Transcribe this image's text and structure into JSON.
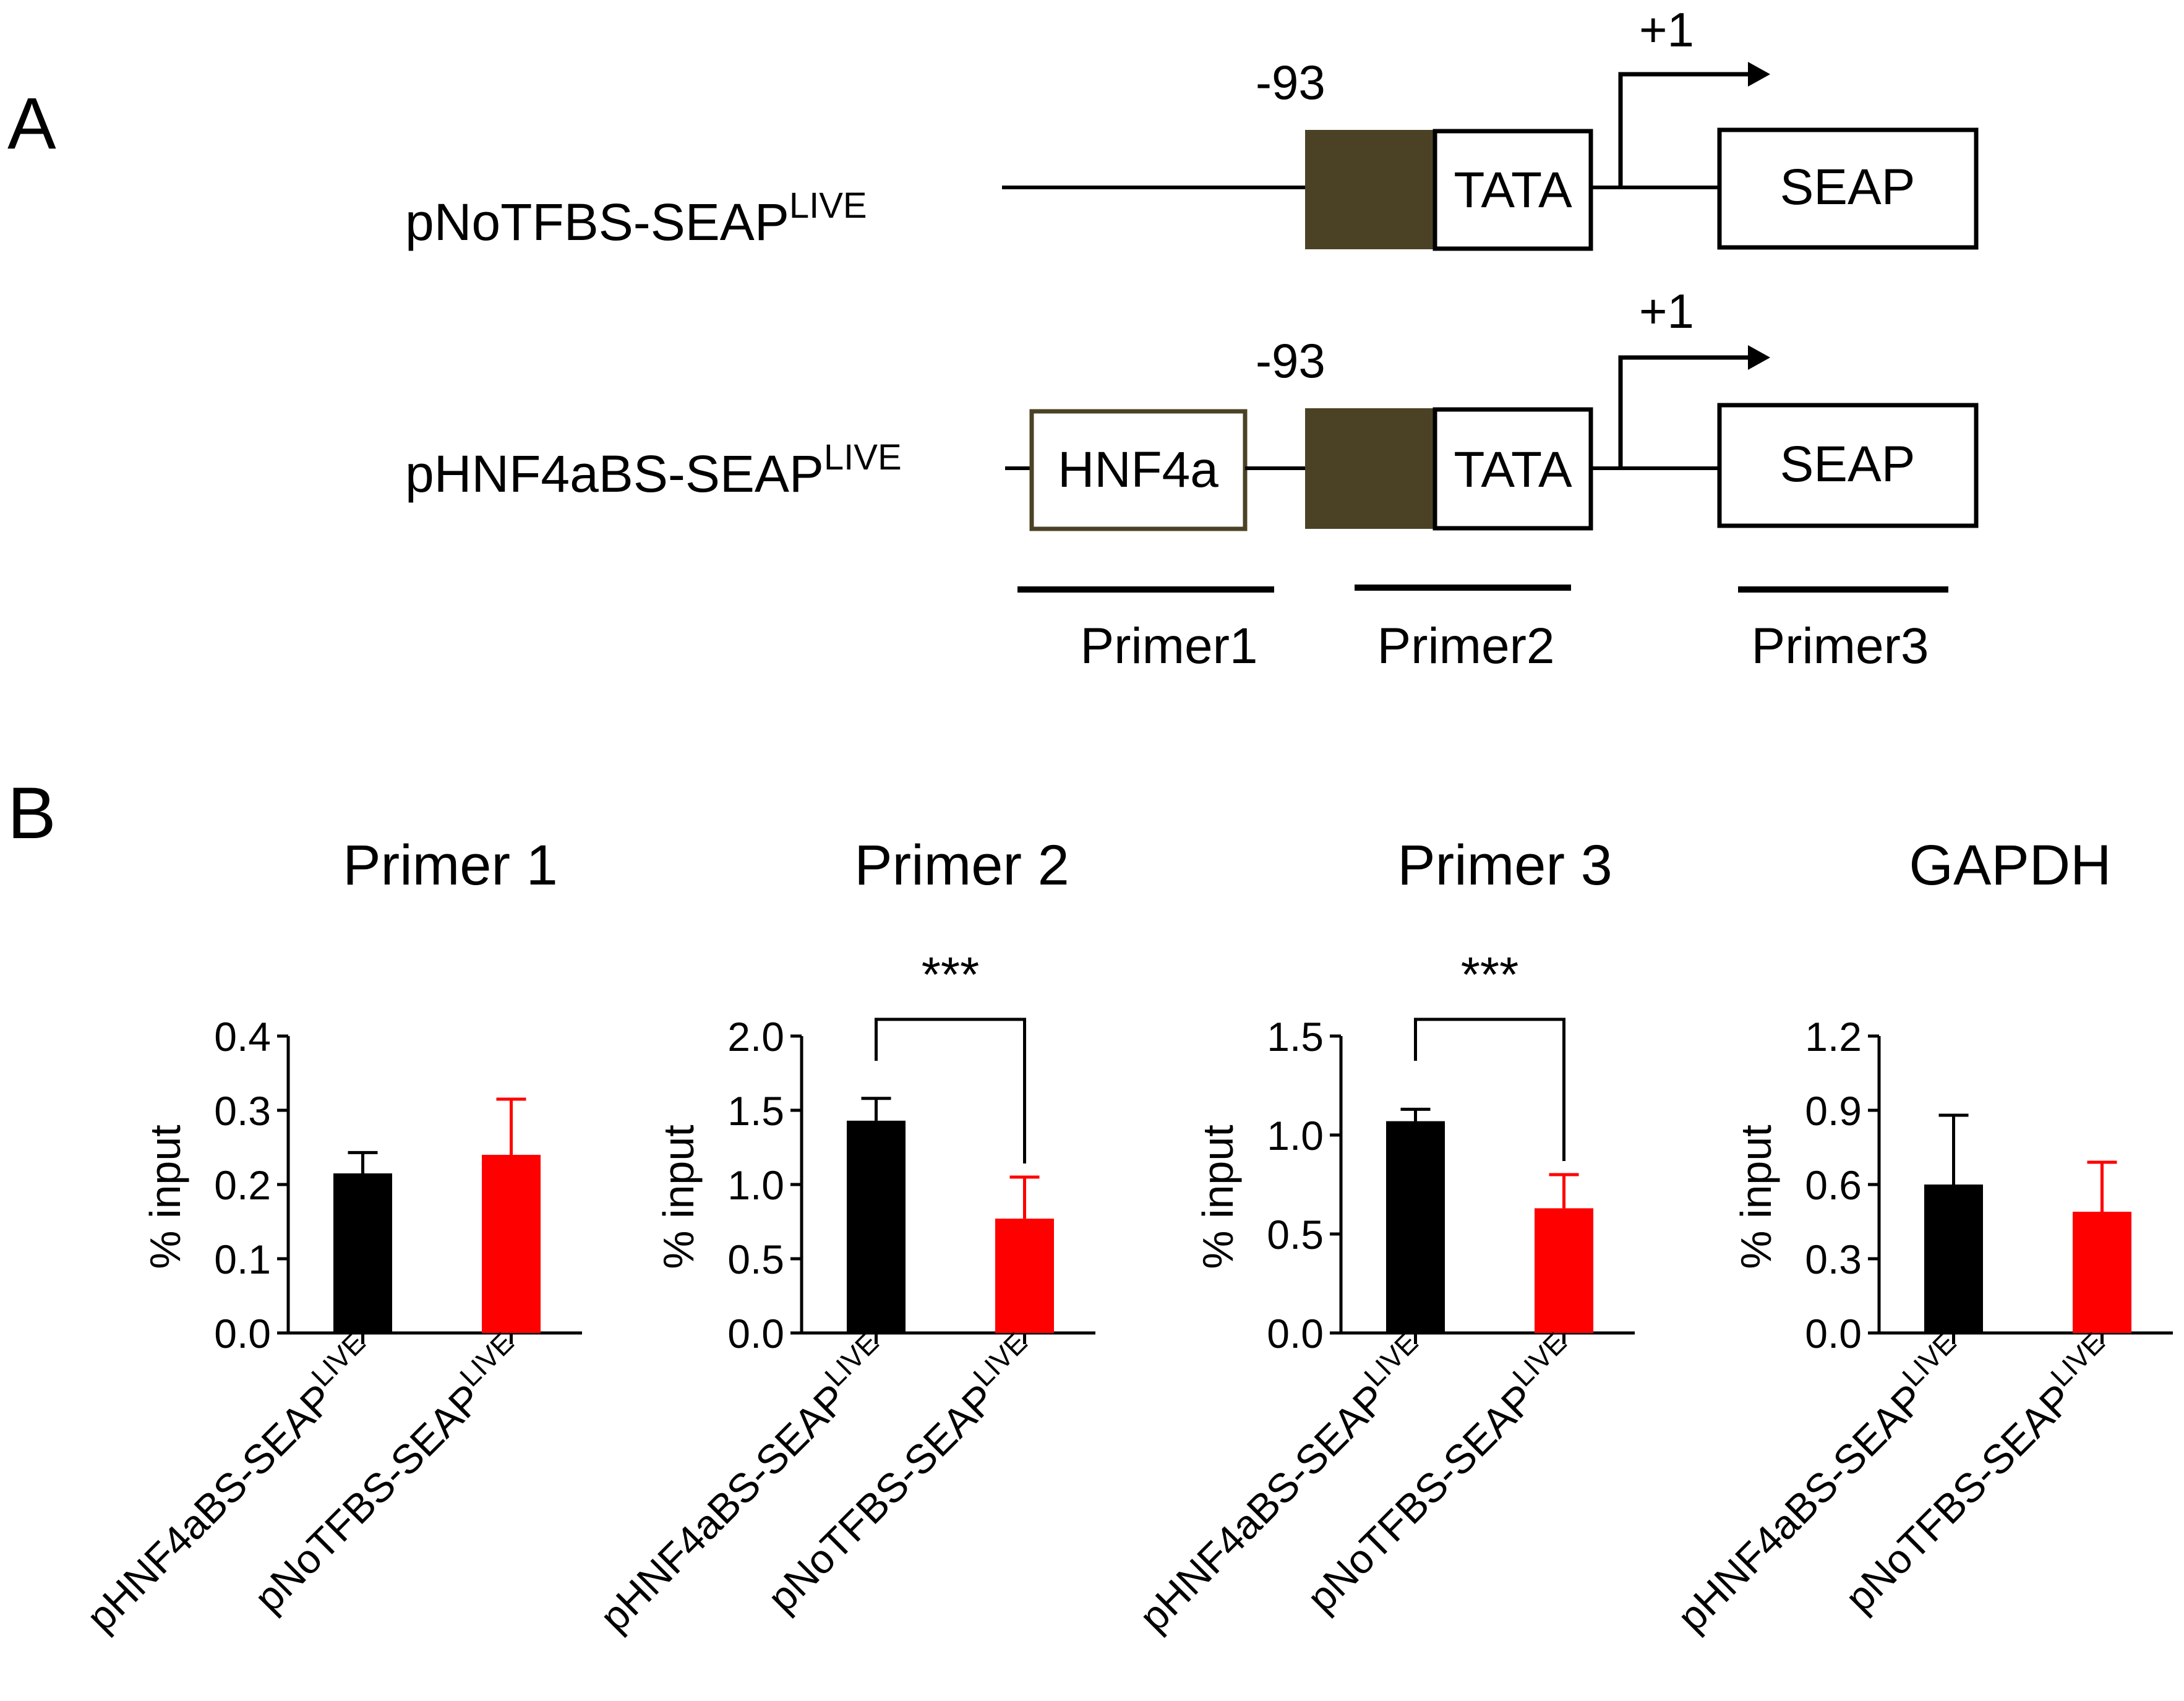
{
  "colors": {
    "ink": "#000000",
    "promoter_box": "#4b4226",
    "hnf4a_border": "#4b4226",
    "series_hnf4a": "#000000",
    "series_notfbs": "#ff0000"
  },
  "panel_a": {
    "label": "A",
    "constructs": [
      {
        "name": "pNoTFBS-SEAP",
        "superscript": "LIVE",
        "position_label": "-93",
        "tss_label": "+1",
        "tata_label": "TATA",
        "reporter_label": "SEAP"
      },
      {
        "name": "pHNF4aBS-SEAP",
        "superscript": "LIVE",
        "position_label": "-93",
        "tss_label": "+1",
        "tata_label": "TATA",
        "reporter_label": "SEAP",
        "binding_site_label": "HNF4a"
      }
    ],
    "primers": [
      "Primer1",
      "Primer2",
      "Primer3"
    ]
  },
  "panel_b": {
    "label": "B",
    "ylabel": "% input",
    "category_names": [
      "pHNF4aBS-SEAP",
      "pNoTFBS-SEAP"
    ],
    "category_superscript": "LIVE"
  },
  "chart_data": [
    {
      "type": "bar",
      "title": "Primer 1",
      "categories": [
        "pHNF4aBS-SEAPLIVE",
        "pNoTFBS-SEAPLIVE"
      ],
      "values": [
        0.215,
        0.24
      ],
      "errors": [
        0.028,
        0.075
      ],
      "ylabel": "% input",
      "ylim": [
        0,
        0.4
      ],
      "yticks": [
        0.0,
        0.1,
        0.2,
        0.3,
        0.4
      ],
      "ytick_labels": [
        "0.0",
        "0.1",
        "0.2",
        "0.3",
        "0.4"
      ],
      "significance": ""
    },
    {
      "type": "bar",
      "title": "Primer 2",
      "categories": [
        "pHNF4aBS-SEAPLIVE",
        "pNoTFBS-SEAPLIVE"
      ],
      "values": [
        1.43,
        0.77
      ],
      "errors": [
        0.15,
        0.28
      ],
      "ylabel": "% input",
      "ylim": [
        0,
        2.0
      ],
      "yticks": [
        0.0,
        0.5,
        1.0,
        1.5,
        2.0
      ],
      "ytick_labels": [
        "0.0",
        "0.5",
        "1.0",
        "1.5",
        "2.0"
      ],
      "significance": "***"
    },
    {
      "type": "bar",
      "title": "Primer 3",
      "categories": [
        "pHNF4aBS-SEAPLIVE",
        "pNoTFBS-SEAPLIVE"
      ],
      "values": [
        1.07,
        0.63
      ],
      "errors": [
        0.06,
        0.17
      ],
      "ylabel": "% input",
      "ylim": [
        0,
        1.5
      ],
      "yticks": [
        0.0,
        0.5,
        1.0,
        1.5
      ],
      "ytick_labels": [
        "0.0",
        "0.5",
        "1.0",
        "1.5"
      ],
      "significance": "***"
    },
    {
      "type": "bar",
      "title": "GAPDH",
      "categories": [
        "pHNF4aBS-SEAPLIVE",
        "pNoTFBS-SEAPLIVE"
      ],
      "values": [
        0.6,
        0.49
      ],
      "errors": [
        0.28,
        0.2
      ],
      "ylabel": "% input",
      "ylim": [
        0,
        1.2
      ],
      "yticks": [
        0.0,
        0.3,
        0.6,
        0.9,
        1.2
      ],
      "ytick_labels": [
        "0.0",
        "0.3",
        "0.6",
        "0.9",
        "1.2"
      ],
      "significance": ""
    }
  ]
}
